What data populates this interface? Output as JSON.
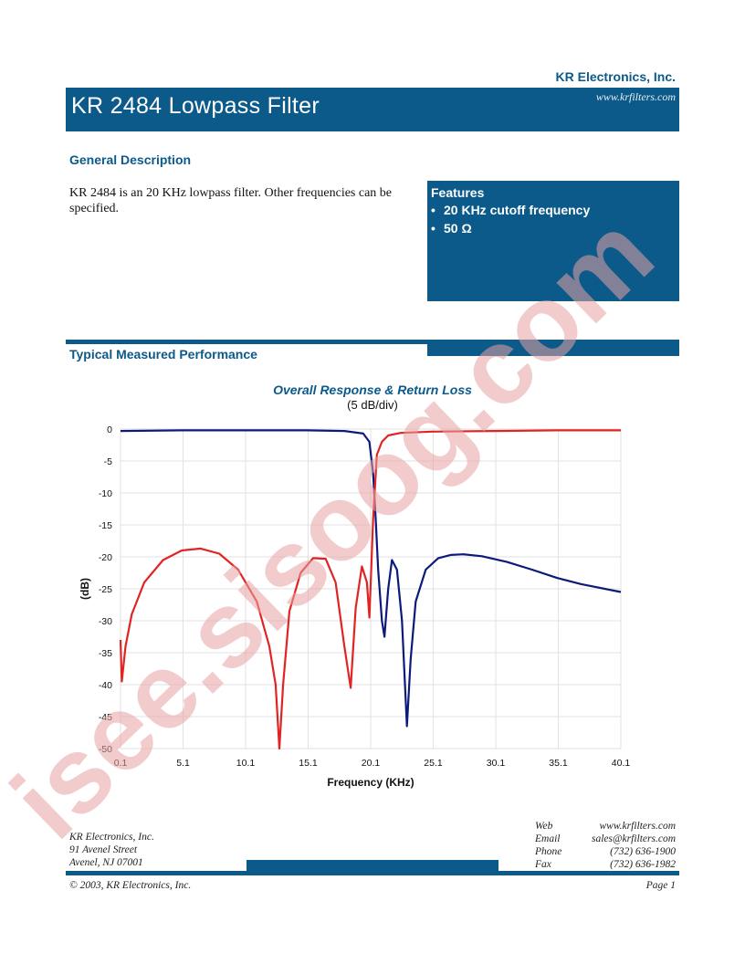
{
  "header": {
    "company": "KR Electronics, Inc.",
    "website": "www.krfilters.com",
    "title": "KR 2484 Lowpass Filter"
  },
  "general_description": {
    "heading": "General Description",
    "text": "KR 2484 is an 20 KHz lowpass filter. Other frequencies can be specified."
  },
  "features": {
    "heading": "Features",
    "items": [
      "20 KHz  cutoff frequency",
      "50 Ω"
    ]
  },
  "performance": {
    "heading": "Typical Measured Performance"
  },
  "chart_data": {
    "type": "line",
    "title": "Overall Response & Return Loss",
    "subtitle": "(5 dB/div)",
    "xlabel": "Frequency (KHz)",
    "ylabel": "(dB)",
    "xlim": [
      0.1,
      40.1
    ],
    "ylim": [
      -50,
      0
    ],
    "x_ticks": [
      "0.1",
      "5.1",
      "10.1",
      "15.1",
      "20.1",
      "25.1",
      "30.1",
      "35.1",
      "40.1"
    ],
    "y_ticks": [
      "0",
      "-5",
      "-10",
      "-15",
      "-20",
      "-25",
      "-30",
      "-35",
      "-40",
      "-45",
      "-50"
    ],
    "grid": true,
    "colors": {
      "response": "#0d1a7a",
      "return_loss": "#e02424"
    },
    "series": [
      {
        "key": "response",
        "x": [
          0.1,
          5,
          10,
          15,
          18,
          19.5,
          20.0,
          20.3,
          20.5,
          20.7,
          21.0,
          21.2,
          21.5,
          21.8,
          22.2,
          22.6,
          23.0,
          23.3,
          23.7,
          24.5,
          25.5,
          26.5,
          27.5,
          29,
          31,
          33,
          35,
          37,
          40.1
        ],
        "y": [
          -0.3,
          -0.2,
          -0.2,
          -0.2,
          -0.3,
          -0.7,
          -2,
          -7,
          -14,
          -22,
          -30,
          -32.5,
          -25,
          -20.5,
          -22,
          -30,
          -46.5,
          -36,
          -27,
          -22,
          -20.2,
          -19.7,
          -19.6,
          -19.9,
          -20.8,
          -22,
          -23.3,
          -24.3,
          -25.5
        ]
      },
      {
        "key": "return_loss",
        "x": [
          0.1,
          0.2,
          0.5,
          1,
          2,
          3.5,
          5,
          6.5,
          8,
          9.5,
          11,
          12,
          12.5,
          12.8,
          13.1,
          13.6,
          14.5,
          15.5,
          16.5,
          17.3,
          18.0,
          18.5,
          18.9,
          19.4,
          19.8,
          20.0,
          20.3,
          20.6,
          21.0,
          21.5,
          22.5,
          25,
          30,
          35,
          40.1
        ],
        "y": [
          -33,
          -39.5,
          -34,
          -29,
          -24,
          -20.5,
          -19,
          -18.7,
          -19.5,
          -22,
          -27,
          -34,
          -40,
          -50,
          -40,
          -28.5,
          -22.5,
          -20.2,
          -20.3,
          -24,
          -34,
          -40.5,
          -28,
          -21.5,
          -24,
          -29.5,
          -14,
          -4,
          -2,
          -1,
          -0.6,
          -0.4,
          -0.3,
          -0.2,
          -0.2
        ]
      }
    ]
  },
  "footer": {
    "address": [
      "KR Electronics, Inc.",
      "91 Avenel Street",
      "Avenel, NJ 07001"
    ],
    "contacts": [
      {
        "label": "Web",
        "value": "www.krfilters.com"
      },
      {
        "label": "Email",
        "value": "sales@krfilters.com"
      },
      {
        "label": "Phone",
        "value": "(732) 636-1900"
      },
      {
        "label": "Fax",
        "value": "(732) 636-1982"
      }
    ],
    "copyright": "© 2003, KR Electronics, Inc.",
    "page": "Page 1"
  },
  "watermark": {
    "text": "isee.sisoog.com",
    "color": "#e8a3a3"
  }
}
